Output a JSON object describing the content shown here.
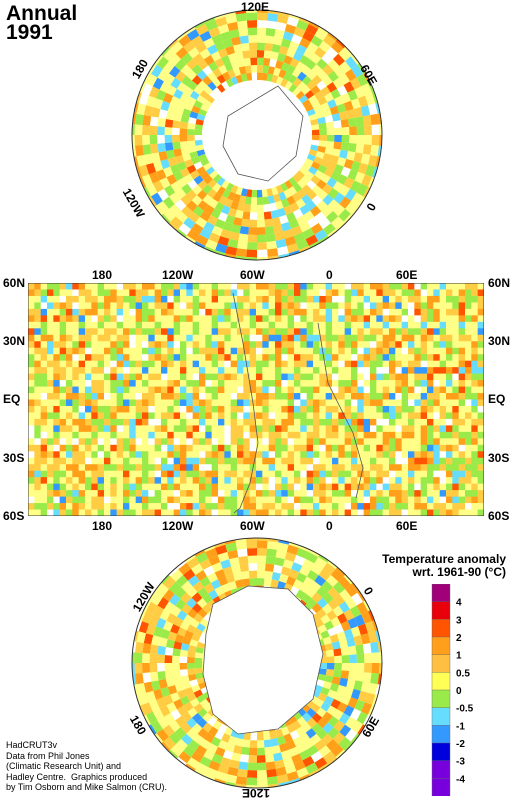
{
  "title": {
    "line1": "Annual",
    "line2": "1991"
  },
  "north_polar": {
    "labels": {
      "top": "120E",
      "left": "180",
      "right": "60E",
      "lower_left": "120W",
      "lower_right": "0"
    }
  },
  "equirect": {
    "top_lon_labels": [
      "180",
      "120W",
      "60W",
      "0",
      "60E"
    ],
    "bottom_lon_labels": [
      "180",
      "120W",
      "60W",
      "0",
      "60E"
    ],
    "lat_labels": [
      "60N",
      "30N",
      "EQ",
      "30S",
      "60S"
    ]
  },
  "south_polar": {
    "labels": {
      "upper_left": "120W",
      "upper_right": "0",
      "lower_left": "180",
      "lower_right": "60E",
      "bottom": "120E"
    }
  },
  "legend": {
    "title_line1": "Temperature anomaly",
    "title_line2": "wrt. 1961-90  (°C)",
    "ticks": [
      "4",
      "3",
      "2",
      "1",
      "0.5",
      "0",
      "-0.5",
      "-1",
      "-2",
      "-3",
      "-4"
    ],
    "colors": [
      "#a0007a",
      "#e8000b",
      "#ff5500",
      "#ff9f1a",
      "#ffbf40",
      "#ffff55",
      "#9aeb4a",
      "#66ddff",
      "#3399ff",
      "#0000dd",
      "#7700dd",
      "#7700dd"
    ]
  },
  "credit": "HadCRUT3v\nData from Phil Jones\n(Climatic Research Unit) and\nHadley Centre.  Graphics produced\nby Tim Osborn and Mike Salmon (CRU)."
}
